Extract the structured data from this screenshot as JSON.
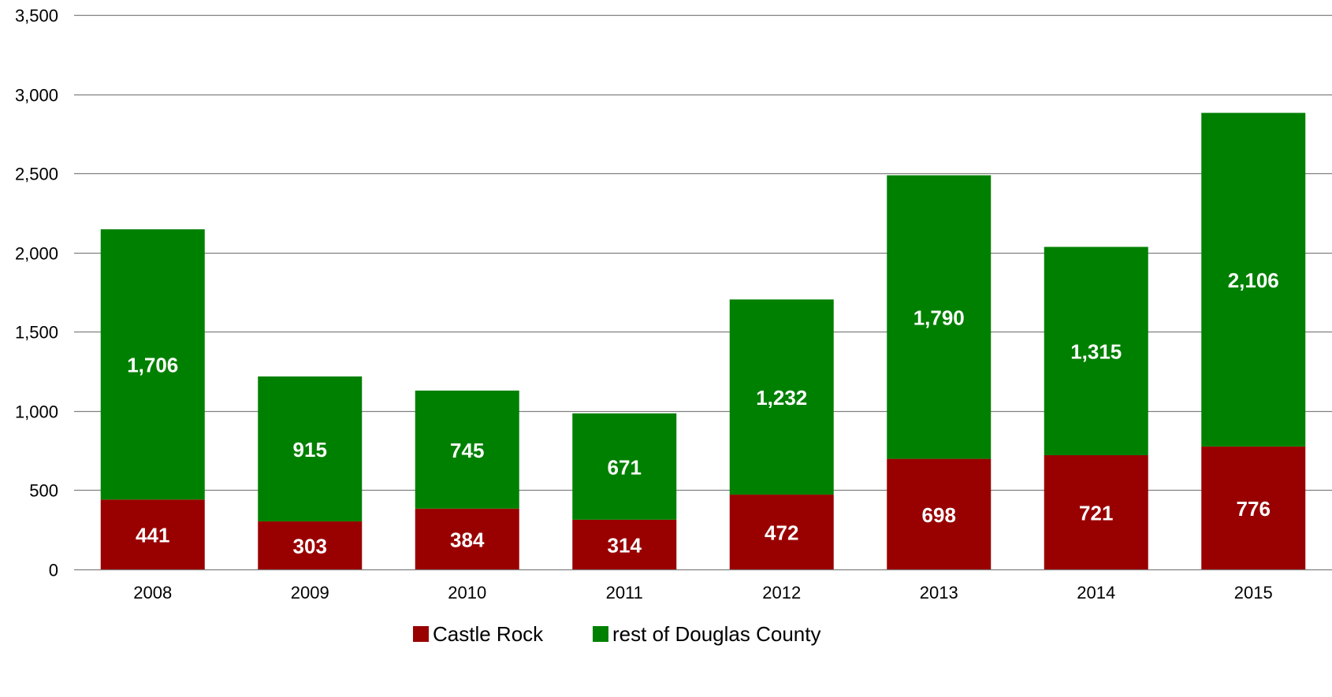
{
  "chart_data": {
    "type": "bar",
    "stacked": true,
    "categories": [
      "2008",
      "2009",
      "2010",
      "2011",
      "2012",
      "2013",
      "2014",
      "2015"
    ],
    "series": [
      {
        "name": "Castle Rock",
        "color": "#990000",
        "values": [
          441,
          303,
          384,
          314,
          472,
          698,
          721,
          776
        ]
      },
      {
        "name": "rest of Douglas County",
        "color": "#008000",
        "values": [
          1706,
          915,
          745,
          671,
          1232,
          1790,
          1315,
          2106
        ]
      }
    ],
    "value_labels": [
      [
        "441",
        "303",
        "384",
        "314",
        "472",
        "698",
        "721",
        "776"
      ],
      [
        "1,706",
        "915",
        "745",
        "671",
        "1,232",
        "1,790",
        "1,315",
        "2,106"
      ]
    ],
    "ylim": [
      0,
      3500
    ],
    "yticks": [
      0,
      500,
      1000,
      1500,
      2000,
      2500,
      3000,
      3500
    ],
    "ytick_labels": [
      "0",
      "500",
      "1,000",
      "1,500",
      "2,000",
      "2,500",
      "3,000",
      "3,500"
    ],
    "grid": true,
    "legend_position": "bottom",
    "gridline_color": "#808080"
  }
}
